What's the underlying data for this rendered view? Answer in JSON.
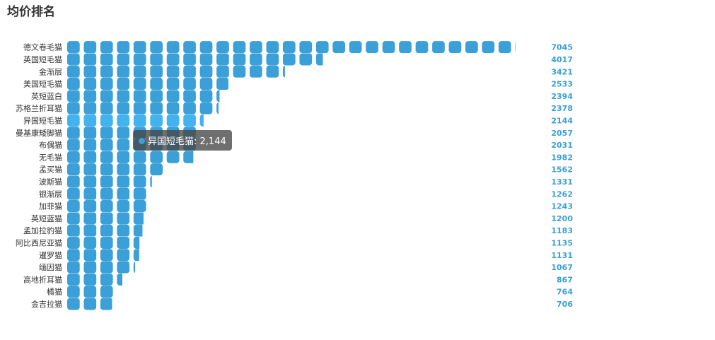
{
  "title": "均价排名",
  "colors": {
    "bar": "#3aa0d7",
    "bar_highlight": "#43b3ef",
    "value_label": "#3a9fd6"
  },
  "tooltip": {
    "series_label": "异国短毛猫",
    "value_text": "2,144"
  },
  "chart_data": {
    "type": "bar",
    "orientation": "horizontal",
    "style": "pictorial-rounded-blocks",
    "title": "均价排名",
    "categories": [
      "德文卷毛猫",
      "英国短毛猫",
      "金渐层",
      "美国短毛猫",
      "英短蓝白",
      "苏格兰折耳猫",
      "异国短毛猫",
      "曼基康矮脚猫",
      "布偶猫",
      "无毛猫",
      "孟买猫",
      "波斯猫",
      "银渐层",
      "加菲猫",
      "英短蓝猫",
      "孟加拉豹猫",
      "阿比西尼亚猫",
      "暹罗猫",
      "缅因猫",
      "高地折耳猫",
      "橘猫",
      "金吉拉猫"
    ],
    "values": [
      7045,
      4017,
      3421,
      2533,
      2394,
      2378,
      2144,
      2057,
      2031,
      1982,
      1562,
      1331,
      1262,
      1243,
      1200,
      1183,
      1135,
      1131,
      1067,
      867,
      764,
      706
    ],
    "highlighted": "异国短毛猫",
    "xlim": [
      0,
      7045
    ],
    "grid": false,
    "legend": "none"
  }
}
